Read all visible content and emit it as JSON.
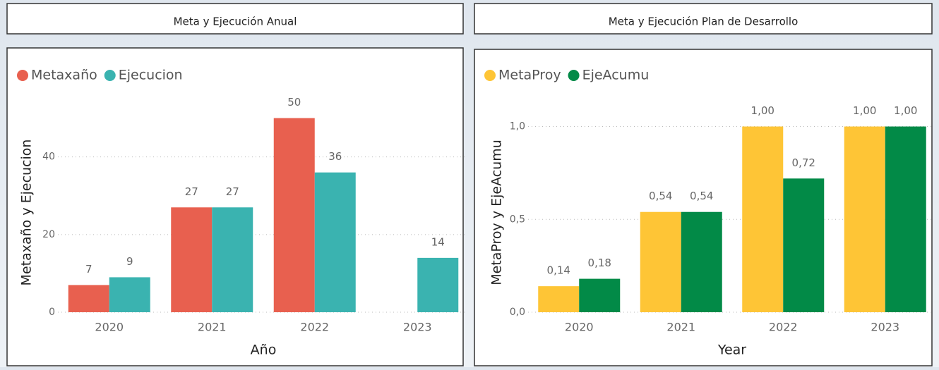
{
  "chart_data": [
    {
      "type": "bar",
      "title": "Meta y Ejecución Anual",
      "categories": [
        "2020",
        "2021",
        "2022",
        "2023"
      ],
      "series": [
        {
          "name": "Metaxaño",
          "color": "#e8604f",
          "values": [
            7,
            27,
            50,
            null
          ]
        },
        {
          "name": "Ejecucion",
          "color": "#3ab3b0",
          "values": [
            9,
            27,
            36,
            14
          ]
        }
      ],
      "x_label": "Año",
      "y_label": "Metaxaño y Ejecucion",
      "ylim": [
        0,
        55
      ],
      "yticks": [
        0,
        20,
        40
      ],
      "grid": true,
      "legend": "top-left"
    },
    {
      "type": "bar",
      "title": "Meta y Ejecución Plan de Desarrollo",
      "categories": [
        "2020",
        "2021",
        "2022",
        "2023"
      ],
      "series": [
        {
          "name": "MetaProy",
          "color": "#fec536",
          "values": [
            0.14,
            0.54,
            1.0,
            1.0
          ],
          "value_labels": [
            "0,14",
            "0,54",
            "1,00",
            "1,00"
          ]
        },
        {
          "name": "EjeAcumu",
          "color": "#028a47",
          "values": [
            0.18,
            0.54,
            0.72,
            1.0
          ],
          "value_labels": [
            "0,18",
            "0,54",
            "0,72",
            "1,00"
          ]
        }
      ],
      "x_label": "Year",
      "y_label": "MetaProy y EjeAcumu",
      "ylim": [
        0,
        1.15
      ],
      "yticks": [
        {
          "value": 0,
          "label": "0,0"
        },
        {
          "value": 0.5,
          "label": "0,5"
        },
        {
          "value": 1,
          "label": "1,0"
        }
      ],
      "grid": true,
      "legend": "top-left"
    }
  ]
}
